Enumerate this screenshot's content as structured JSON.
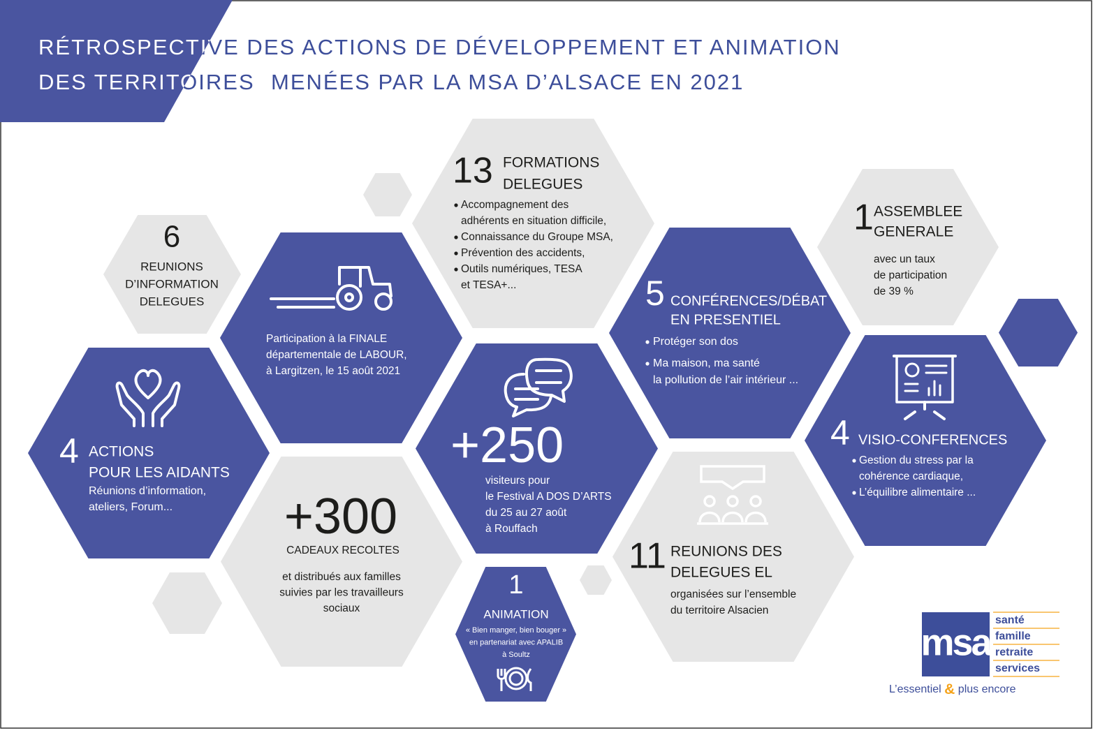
{
  "title": {
    "line1": "RÉTROSPECTIVE DES ACTIONS DE DÉVELOPPEMENT ET ANIMATION",
    "line2a": "DES TERRITOIRES",
    "line2b": "MENÉES PAR LA MSA D’ALSACE EN 2021"
  },
  "reunions_information": {
    "number": "6",
    "heading": [
      "REUNIONS",
      "D’INFORMATION",
      "DELEGUES"
    ]
  },
  "labour": {
    "body": [
      "Participation à la FINALE",
      "départementale de LABOUR,",
      "à Largitzen, le 15 août 2021"
    ]
  },
  "formations": {
    "number": "13",
    "heading": [
      "FORMATIONS",
      "DELEGUES"
    ],
    "body": [
      "Accompagnement des",
      "adhérents en situation difficile,",
      "Connaissance du Groupe MSA,",
      "Prévention des accidents,",
      "Outils numériques, TESA",
      "et TESA+..."
    ]
  },
  "assemblee": {
    "number": "1",
    "heading": [
      "ASSEMBLEE",
      "GENERALE"
    ],
    "body": [
      "avec un taux",
      "de participation",
      "de 39 %"
    ]
  },
  "conferences": {
    "number": "5",
    "heading": [
      "CONFÉRENCES/DÉBAT",
      "EN PRESENTIEL"
    ],
    "body": [
      "Protéger son dos",
      "Ma maison, ma santé",
      "la pollution de l’air intérieur ..."
    ]
  },
  "aidants": {
    "number": "4",
    "heading": [
      "ACTIONS",
      "POUR LES AIDANTS"
    ],
    "body": [
      "Réunions d’information,",
      "ateliers, Forum..."
    ]
  },
  "visio": {
    "number": "4",
    "heading": [
      "VISIO-CONFERENCES"
    ],
    "body": [
      "Gestion du stress par la",
      "cohérence cardiaque,",
      "L’équilibre alimentaire ..."
    ]
  },
  "festival": {
    "number": "+250",
    "body": [
      "visiteurs pour",
      "le Festival A DOS D’ARTS",
      "du 25 au 27 août",
      "à Rouffach"
    ]
  },
  "cadeaux": {
    "number": "+300",
    "heading": [
      "CADEAUX RECOLTES"
    ],
    "body": [
      "et distribués aux familles",
      "suivies par les travailleurs",
      "sociaux"
    ]
  },
  "reunions_el": {
    "number": "11",
    "heading": [
      "REUNIONS DES",
      "DELEGUES EL"
    ],
    "body": [
      "organisées sur l’ensemble",
      "du territoire Alsacien"
    ]
  },
  "animation": {
    "number": "1",
    "heading": [
      "ANIMATION"
    ],
    "body": [
      "« Bien manger, bien bouger »",
      "en partenariat avec APALIB",
      "à Soultz"
    ]
  },
  "logo": {
    "mark": "msa",
    "words": [
      "santé",
      "famille",
      "retraite",
      "services"
    ],
    "tagline": [
      "L’essentiel",
      "&",
      "plus encore"
    ]
  }
}
